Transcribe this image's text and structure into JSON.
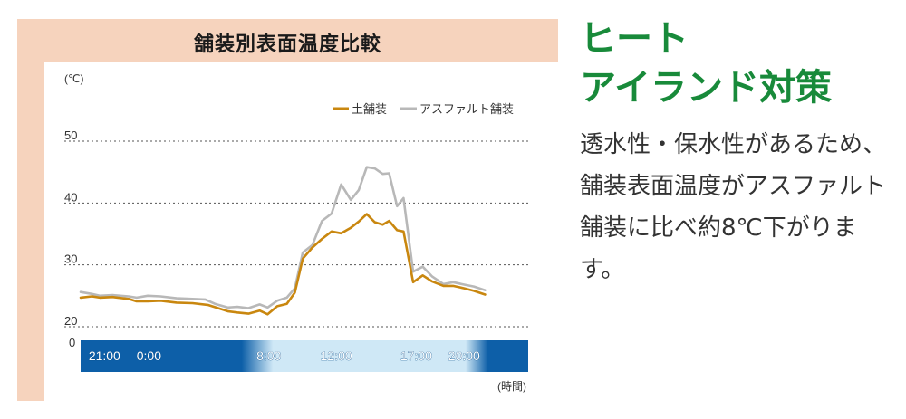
{
  "panel": {
    "title": "舗装別表面温度比較"
  },
  "right": {
    "heading_line1": "ヒート",
    "heading_line2": "アイランド対策",
    "body": "透水性・保水性があるため、舗装表面温度がアスファルト舗装に比べ約8℃下がります。"
  },
  "colors": {
    "panel_bg": "#f6d3bd",
    "soil": "#c9870f",
    "asphalt": "#b8b8b8",
    "night_blue": "#0d5fa8",
    "day_light": "#cfe8f6",
    "heading_green": "#188a3a"
  },
  "chart_data": {
    "type": "line",
    "title": "舗装別表面温度比較",
    "ylabel": "(℃)",
    "xlabel": "(時間)",
    "ylim": [
      20,
      50
    ],
    "yticks": [
      {
        "value": 50,
        "label": "50"
      },
      {
        "value": 40,
        "label": "40"
      },
      {
        "value": 30,
        "label": "30"
      },
      {
        "value": 20,
        "label": "20"
      }
    ],
    "y_origin_label": "0",
    "xlim": [
      0,
      28
    ],
    "time_labels": [
      {
        "x": 0.5,
        "label": "21:00"
      },
      {
        "x": 3.5,
        "label": "0:00"
      },
      {
        "x": 11.0,
        "label": "8:00"
      },
      {
        "x": 15.0,
        "label": "12:00"
      },
      {
        "x": 20.0,
        "label": "17:00"
      },
      {
        "x": 23.0,
        "label": "20:00"
      }
    ],
    "legend": {
      "placement": "top-right"
    },
    "series": [
      {
        "name": "土舗装",
        "color": "#c9870f",
        "points": [
          [
            0,
            24.7
          ],
          [
            0.7,
            24.9
          ],
          [
            1.2,
            24.7
          ],
          [
            2,
            24.8
          ],
          [
            3,
            24.5
          ],
          [
            3.5,
            24.1
          ],
          [
            4.2,
            24.1
          ],
          [
            5,
            24.2
          ],
          [
            6,
            23.9
          ],
          [
            7,
            23.8
          ],
          [
            8,
            23.5
          ],
          [
            8.6,
            23
          ],
          [
            9.2,
            22.5
          ],
          [
            9.8,
            22.3
          ],
          [
            10.5,
            22.1
          ],
          [
            11.2,
            22.6
          ],
          [
            11.7,
            22
          ],
          [
            12.3,
            23.3
          ],
          [
            12.9,
            23.7
          ],
          [
            13.4,
            25.5
          ],
          [
            13.9,
            31
          ],
          [
            14.5,
            32.8
          ],
          [
            15.1,
            34.2
          ],
          [
            15.7,
            35.4
          ],
          [
            16.3,
            35.1
          ],
          [
            16.9,
            36
          ],
          [
            17.4,
            37
          ],
          [
            17.9,
            38.2
          ],
          [
            18.4,
            36.9
          ],
          [
            18.9,
            36.5
          ],
          [
            19.3,
            37.1
          ],
          [
            19.8,
            35.6
          ],
          [
            20.2,
            35.4
          ],
          [
            20.8,
            27.2
          ],
          [
            21.4,
            28.3
          ],
          [
            22,
            27.3
          ],
          [
            22.7,
            26.6
          ],
          [
            23.3,
            26.6
          ],
          [
            24,
            26.2
          ],
          [
            24.6,
            25.8
          ],
          [
            25.3,
            25.2
          ]
        ]
      },
      {
        "name": "アスファルト舗装",
        "color": "#b8b8b8",
        "points": [
          [
            0,
            25.6
          ],
          [
            0.7,
            25.3
          ],
          [
            1.2,
            25.0
          ],
          [
            2,
            25.1
          ],
          [
            3,
            24.9
          ],
          [
            3.5,
            24.7
          ],
          [
            4.2,
            25.0
          ],
          [
            5,
            24.9
          ],
          [
            6,
            24.6
          ],
          [
            7,
            24.5
          ],
          [
            7.8,
            24.4
          ],
          [
            8.4,
            23.7
          ],
          [
            9.2,
            23.1
          ],
          [
            9.8,
            23.2
          ],
          [
            10.5,
            23.0
          ],
          [
            11.2,
            23.6
          ],
          [
            11.7,
            23.1
          ],
          [
            12.3,
            24.2
          ],
          [
            12.9,
            24.7
          ],
          [
            13.4,
            26.2
          ],
          [
            13.9,
            32
          ],
          [
            14.5,
            33.2
          ],
          [
            15.1,
            37.1
          ],
          [
            15.7,
            38.3
          ],
          [
            16.3,
            43
          ],
          [
            16.9,
            40.5
          ],
          [
            17.4,
            42.1
          ],
          [
            17.9,
            45.8
          ],
          [
            18.4,
            45.6
          ],
          [
            18.9,
            44.7
          ],
          [
            19.3,
            44.8
          ],
          [
            19.8,
            39.5
          ],
          [
            20.2,
            40.8
          ],
          [
            20.8,
            28.9
          ],
          [
            21.4,
            29.7
          ],
          [
            22,
            28.1
          ],
          [
            22.7,
            26.9
          ],
          [
            23.3,
            27.2
          ],
          [
            24,
            26.8
          ],
          [
            24.6,
            26.5
          ],
          [
            25.3,
            25.9
          ]
        ]
      }
    ]
  }
}
